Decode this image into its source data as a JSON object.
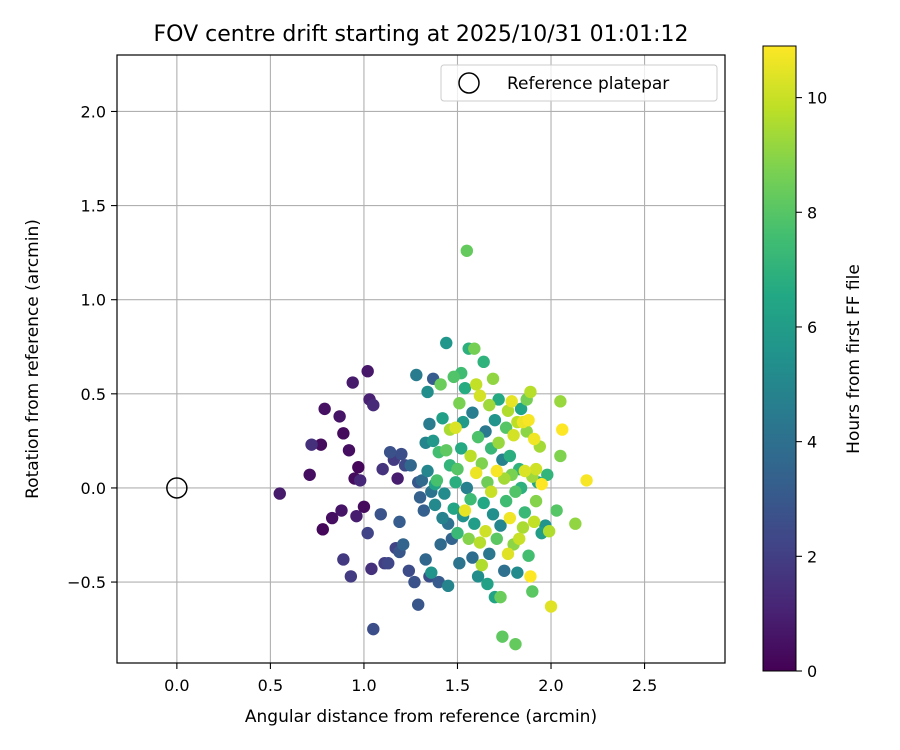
{
  "chart_data": {
    "type": "scatter",
    "title": "FOV centre drift starting at 2025/10/31 01:01:12",
    "xlabel": "Angular distance from reference (arcmin)",
    "ylabel": "Rotation from reference (arcmin)",
    "xlim": [
      -0.32,
      2.93
    ],
    "ylim": [
      -0.93,
      2.3
    ],
    "xticks": [
      0.0,
      0.5,
      1.0,
      1.5,
      2.0,
      2.5
    ],
    "xtick_labels": [
      "0.0",
      "0.5",
      "1.0",
      "1.5",
      "2.0",
      "2.5"
    ],
    "yticks": [
      -0.5,
      0.0,
      0.5,
      1.0,
      1.5,
      2.0
    ],
    "ytick_labels": [
      "−0.5",
      "0.0",
      "0.5",
      "1.0",
      "1.5",
      "2.0"
    ],
    "grid": true,
    "legend": {
      "position": "top-right",
      "entries": [
        "Reference platepar"
      ]
    },
    "reference_point": {
      "x": 0.0,
      "y": 0.0,
      "label": "Reference platepar"
    },
    "colorbar": {
      "label": "Hours from first FF file",
      "colormap": "viridis",
      "range": [
        0,
        10.9
      ],
      "ticks": [
        0,
        2,
        4,
        6,
        8,
        10
      ],
      "tick_labels": [
        "0",
        "2",
        "4",
        "6",
        "8",
        "10"
      ]
    },
    "series": [
      {
        "name": "FOV centre",
        "points": [
          {
            "x": 0.55,
            "y": -0.03,
            "t": 0.8
          },
          {
            "x": 0.71,
            "y": 0.07,
            "t": 0.4
          },
          {
            "x": 0.72,
            "y": 0.23,
            "t": 1.5
          },
          {
            "x": 0.77,
            "y": 0.23,
            "t": 0.3
          },
          {
            "x": 0.78,
            "y": -0.22,
            "t": 0.2
          },
          {
            "x": 0.79,
            "y": 0.42,
            "t": 0.5
          },
          {
            "x": 0.83,
            "y": -0.16,
            "t": 0.4
          },
          {
            "x": 0.87,
            "y": 0.38,
            "t": 0.6
          },
          {
            "x": 0.89,
            "y": 0.29,
            "t": 0.3
          },
          {
            "x": 0.88,
            "y": -0.12,
            "t": 0.6
          },
          {
            "x": 0.89,
            "y": -0.38,
            "t": 1.8
          },
          {
            "x": 0.92,
            "y": 0.2,
            "t": 0.4
          },
          {
            "x": 0.93,
            "y": -0.47,
            "t": 1.9
          },
          {
            "x": 0.94,
            "y": 0.56,
            "t": 0.8
          },
          {
            "x": 0.95,
            "y": 0.05,
            "t": 0.3
          },
          {
            "x": 0.96,
            "y": -0.15,
            "t": 0.9
          },
          {
            "x": 0.97,
            "y": 0.11,
            "t": 0.2
          },
          {
            "x": 0.98,
            "y": 0.04,
            "t": 1.2
          },
          {
            "x": 1.0,
            "y": -0.1,
            "t": 0.3
          },
          {
            "x": 1.02,
            "y": 0.62,
            "t": 0.7
          },
          {
            "x": 1.02,
            "y": -0.24,
            "t": 2.2
          },
          {
            "x": 1.03,
            "y": 0.47,
            "t": 1.0
          },
          {
            "x": 1.04,
            "y": -0.43,
            "t": 1.5
          },
          {
            "x": 1.05,
            "y": 0.44,
            "t": 1.3
          },
          {
            "x": 1.05,
            "y": -0.75,
            "t": 2.6
          },
          {
            "x": 1.09,
            "y": -0.14,
            "t": 2.8
          },
          {
            "x": 1.1,
            "y": 0.1,
            "t": 1.6
          },
          {
            "x": 1.11,
            "y": -0.4,
            "t": 2.0
          },
          {
            "x": 1.13,
            "y": -0.4,
            "t": 2.3
          },
          {
            "x": 1.14,
            "y": 0.19,
            "t": 2.7
          },
          {
            "x": 1.16,
            "y": 0.15,
            "t": 1.9
          },
          {
            "x": 1.17,
            "y": -0.32,
            "t": 2.2
          },
          {
            "x": 1.18,
            "y": 0.05,
            "t": 0.9
          },
          {
            "x": 1.19,
            "y": -0.34,
            "t": 2.9
          },
          {
            "x": 1.19,
            "y": -0.18,
            "t": 3.2
          },
          {
            "x": 1.2,
            "y": 0.18,
            "t": 2.6
          },
          {
            "x": 1.21,
            "y": -0.3,
            "t": 3.5
          },
          {
            "x": 1.22,
            "y": 0.12,
            "t": 2.4
          },
          {
            "x": 1.24,
            "y": -0.44,
            "t": 2.5
          },
          {
            "x": 1.25,
            "y": 0.12,
            "t": 3.6
          },
          {
            "x": 1.27,
            "y": -0.5,
            "t": 2.7
          },
          {
            "x": 1.28,
            "y": 0.6,
            "t": 4.5
          },
          {
            "x": 1.29,
            "y": -0.62,
            "t": 2.9
          },
          {
            "x": 1.29,
            "y": 0.03,
            "t": 3.0
          },
          {
            "x": 1.3,
            "y": -0.05,
            "t": 3.4
          },
          {
            "x": 1.31,
            "y": 0.04,
            "t": 3.8
          },
          {
            "x": 1.32,
            "y": -0.12,
            "t": 3.3
          },
          {
            "x": 1.33,
            "y": 0.24,
            "t": 4.9
          },
          {
            "x": 1.33,
            "y": -0.38,
            "t": 3.6
          },
          {
            "x": 1.34,
            "y": 0.51,
            "t": 5.3
          },
          {
            "x": 1.34,
            "y": 0.09,
            "t": 5.0
          },
          {
            "x": 1.35,
            "y": -0.47,
            "t": 2.6
          },
          {
            "x": 1.35,
            "y": 0.34,
            "t": 4.5
          },
          {
            "x": 1.36,
            "y": -0.02,
            "t": 4.2
          },
          {
            "x": 1.36,
            "y": -0.45,
            "t": 5.6
          },
          {
            "x": 1.37,
            "y": 0.58,
            "t": 3.2
          },
          {
            "x": 1.37,
            "y": 0.25,
            "t": 5.8
          },
          {
            "x": 1.38,
            "y": -0.09,
            "t": 5.1
          },
          {
            "x": 1.38,
            "y": 0.02,
            "t": 6.3
          },
          {
            "x": 1.39,
            "y": 0.04,
            "t": 7.7
          },
          {
            "x": 1.4,
            "y": -0.5,
            "t": 3.1
          },
          {
            "x": 1.4,
            "y": 0.19,
            "t": 7.6
          },
          {
            "x": 1.41,
            "y": 0.55,
            "t": 8.4
          },
          {
            "x": 1.41,
            "y": -0.3,
            "t": 3.8
          },
          {
            "x": 1.42,
            "y": -0.16,
            "t": 4.8
          },
          {
            "x": 1.42,
            "y": 0.37,
            "t": 6.1
          },
          {
            "x": 1.43,
            "y": -0.03,
            "t": 5.2
          },
          {
            "x": 1.44,
            "y": 0.77,
            "t": 5.7
          },
          {
            "x": 1.44,
            "y": 0.2,
            "t": 8.2
          },
          {
            "x": 1.45,
            "y": -0.19,
            "t": 4.1
          },
          {
            "x": 1.45,
            "y": -0.52,
            "t": 4.9
          },
          {
            "x": 1.46,
            "y": 0.31,
            "t": 9.5
          },
          {
            "x": 1.46,
            "y": 0.12,
            "t": 7.1
          },
          {
            "x": 1.47,
            "y": -0.27,
            "t": 3.5
          },
          {
            "x": 1.48,
            "y": 0.59,
            "t": 7.9
          },
          {
            "x": 1.48,
            "y": -0.11,
            "t": 6.4
          },
          {
            "x": 1.49,
            "y": 0.32,
            "t": 10.3
          },
          {
            "x": 1.49,
            "y": 0.03,
            "t": 6.8
          },
          {
            "x": 1.5,
            "y": -0.24,
            "t": 7.3
          },
          {
            "x": 1.5,
            "y": 0.1,
            "t": 8.0
          },
          {
            "x": 1.51,
            "y": -0.4,
            "t": 4.2
          },
          {
            "x": 1.51,
            "y": 0.45,
            "t": 8.7
          },
          {
            "x": 1.52,
            "y": 0.61,
            "t": 7.5
          },
          {
            "x": 1.52,
            "y": 0.21,
            "t": 6.6
          },
          {
            "x": 1.53,
            "y": -0.15,
            "t": 5.5
          },
          {
            "x": 1.53,
            "y": 0.35,
            "t": 5.9
          },
          {
            "x": 1.54,
            "y": 0.53,
            "t": 6.7
          },
          {
            "x": 1.54,
            "y": -0.12,
            "t": 10.5
          },
          {
            "x": 1.55,
            "y": 0.0,
            "t": 4.7
          },
          {
            "x": 1.55,
            "y": 1.26,
            "t": 8.3
          },
          {
            "x": 1.56,
            "y": -0.27,
            "t": 8.9
          },
          {
            "x": 1.56,
            "y": 0.74,
            "t": 6.9
          },
          {
            "x": 1.57,
            "y": 0.17,
            "t": 9.8
          },
          {
            "x": 1.57,
            "y": -0.06,
            "t": 7.4
          },
          {
            "x": 1.58,
            "y": 0.4,
            "t": 4.6
          },
          {
            "x": 1.58,
            "y": -0.37,
            "t": 3.9
          },
          {
            "x": 1.59,
            "y": 0.74,
            "t": 8.6
          },
          {
            "x": 1.59,
            "y": -0.19,
            "t": 6.0
          },
          {
            "x": 1.6,
            "y": 0.08,
            "t": 10.6
          },
          {
            "x": 1.6,
            "y": 0.55,
            "t": 9.9
          },
          {
            "x": 1.61,
            "y": -0.47,
            "t": 5.3
          },
          {
            "x": 1.61,
            "y": 0.27,
            "t": 7.8
          },
          {
            "x": 1.62,
            "y": -0.29,
            "t": 9.7
          },
          {
            "x": 1.62,
            "y": 0.49,
            "t": 10.2
          },
          {
            "x": 1.63,
            "y": 0.13,
            "t": 8.8
          },
          {
            "x": 1.63,
            "y": -0.41,
            "t": 9.6
          },
          {
            "x": 1.64,
            "y": 0.67,
            "t": 7.0
          },
          {
            "x": 1.64,
            "y": -0.08,
            "t": 6.5
          },
          {
            "x": 1.65,
            "y": 0.3,
            "t": 4.4
          },
          {
            "x": 1.65,
            "y": -0.23,
            "t": 10.1
          },
          {
            "x": 1.66,
            "y": 0.03,
            "t": 8.5
          },
          {
            "x": 1.66,
            "y": -0.51,
            "t": 6.2
          },
          {
            "x": 1.67,
            "y": 0.44,
            "t": 9.3
          },
          {
            "x": 1.67,
            "y": -0.35,
            "t": 4.3
          },
          {
            "x": 1.68,
            "y": 0.21,
            "t": 7.2
          },
          {
            "x": 1.68,
            "y": -0.02,
            "t": 10.0
          },
          {
            "x": 1.69,
            "y": 0.58,
            "t": 9.1
          },
          {
            "x": 1.69,
            "y": -0.14,
            "t": 5.4
          },
          {
            "x": 1.7,
            "y": 0.36,
            "t": 5.6
          },
          {
            "x": 1.7,
            "y": -0.58,
            "t": 6.3
          },
          {
            "x": 1.71,
            "y": 0.09,
            "t": 10.8
          },
          {
            "x": 1.71,
            "y": -0.27,
            "t": 8.1
          },
          {
            "x": 1.72,
            "y": 0.47,
            "t": 6.6
          },
          {
            "x": 1.72,
            "y": 0.24,
            "t": 9.2
          },
          {
            "x": 1.73,
            "y": -0.2,
            "t": 5.0
          },
          {
            "x": 1.73,
            "y": -0.58,
            "t": 8.4
          },
          {
            "x": 1.74,
            "y": 0.15,
            "t": 4.8
          },
          {
            "x": 1.74,
            "y": -0.79,
            "t": 8.2
          },
          {
            "x": 1.75,
            "y": 0.05,
            "t": 9.4
          },
          {
            "x": 1.75,
            "y": -0.44,
            "t": 4.0
          },
          {
            "x": 1.76,
            "y": 0.32,
            "t": 8.0
          },
          {
            "x": 1.76,
            "y": -0.07,
            "t": 7.5
          },
          {
            "x": 1.77,
            "y": 0.41,
            "t": 9.6
          },
          {
            "x": 1.77,
            "y": -0.35,
            "t": 10.4
          },
          {
            "x": 1.78,
            "y": 0.17,
            "t": 6.8
          },
          {
            "x": 1.78,
            "y": -0.16,
            "t": 10.7
          },
          {
            "x": 1.79,
            "y": 0.07,
            "t": 8.7
          },
          {
            "x": 1.79,
            "y": 0.46,
            "t": 10.5
          },
          {
            "x": 1.8,
            "y": -0.3,
            "t": 9.0
          },
          {
            "x": 1.8,
            "y": 0.28,
            "t": 10.2
          },
          {
            "x": 1.81,
            "y": -0.02,
            "t": 7.9
          },
          {
            "x": 1.81,
            "y": -0.83,
            "t": 8.3
          },
          {
            "x": 1.82,
            "y": 0.35,
            "t": 9.8
          },
          {
            "x": 1.82,
            "y": -0.45,
            "t": 5.2
          },
          {
            "x": 1.83,
            "y": 0.1,
            "t": 7.0
          },
          {
            "x": 1.83,
            "y": -0.27,
            "t": 10.0
          },
          {
            "x": 1.84,
            "y": 0.42,
            "t": 6.4
          },
          {
            "x": 1.84,
            "y": 0.0,
            "t": 6.9
          },
          {
            "x": 1.85,
            "y": -0.21,
            "t": 9.5
          },
          {
            "x": 1.85,
            "y": 0.35,
            "t": 10.6
          },
          {
            "x": 1.86,
            "y": 0.09,
            "t": 10.3
          },
          {
            "x": 1.86,
            "y": -0.13,
            "t": 7.3
          },
          {
            "x": 1.87,
            "y": 0.3,
            "t": 9.0
          },
          {
            "x": 1.87,
            "y": 0.47,
            "t": 8.6
          },
          {
            "x": 1.88,
            "y": 0.36,
            "t": 10.8
          },
          {
            "x": 1.88,
            "y": -0.36,
            "t": 7.6
          },
          {
            "x": 1.89,
            "y": 0.51,
            "t": 9.7
          },
          {
            "x": 1.89,
            "y": -0.47,
            "t": 10.9
          },
          {
            "x": 1.9,
            "y": -0.55,
            "t": 8.1
          },
          {
            "x": 1.9,
            "y": 0.06,
            "t": 9.3
          },
          {
            "x": 1.91,
            "y": -0.18,
            "t": 9.9
          },
          {
            "x": 1.91,
            "y": 0.26,
            "t": 10.7
          },
          {
            "x": 1.92,
            "y": 0.1,
            "t": 10.1
          },
          {
            "x": 1.92,
            "y": -0.07,
            "t": 8.9
          },
          {
            "x": 1.93,
            "y": 0.03,
            "t": 6.5
          },
          {
            "x": 1.94,
            "y": 0.22,
            "t": 9.4
          },
          {
            "x": 1.95,
            "y": 0.02,
            "t": 10.9
          },
          {
            "x": 1.95,
            "y": -0.24,
            "t": 6.0
          },
          {
            "x": 1.97,
            "y": -0.2,
            "t": 5.6
          },
          {
            "x": 1.98,
            "y": 0.07,
            "t": 7.1
          },
          {
            "x": 1.99,
            "y": -0.23,
            "t": 9.6
          },
          {
            "x": 2.0,
            "y": -0.63,
            "t": 10.4
          },
          {
            "x": 2.03,
            "y": -0.12,
            "t": 8.0
          },
          {
            "x": 2.05,
            "y": 0.46,
            "t": 9.2
          },
          {
            "x": 2.05,
            "y": 0.17,
            "t": 8.8
          },
          {
            "x": 2.06,
            "y": 0.31,
            "t": 10.9
          },
          {
            "x": 2.13,
            "y": -0.19,
            "t": 9.1
          },
          {
            "x": 2.19,
            "y": 0.04,
            "t": 10.8
          }
        ]
      }
    ]
  }
}
